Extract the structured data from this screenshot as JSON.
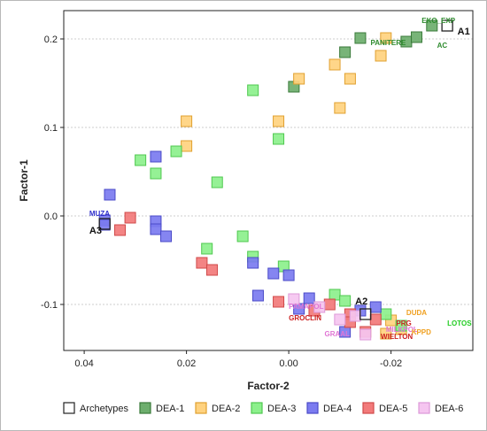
{
  "chart_data": {
    "type": "scatter",
    "xlabel": "Factor-2",
    "ylabel": "Factor-1",
    "xlim": [
      0.044,
      -0.036
    ],
    "ylim": [
      -0.152,
      0.232
    ],
    "x_reversed": true,
    "xticks": [
      0.04,
      0.02,
      0.0,
      -0.02
    ],
    "xtick_labels": [
      "0.04",
      "0.02",
      "0.00",
      "-0.02"
    ],
    "yticks": [
      0.2,
      0.1,
      0.0,
      -0.1
    ],
    "ytick_labels": [
      "0.2",
      "0.1",
      "0.0",
      "-0.1"
    ],
    "grid": "horizontal dotted",
    "legend_position": "bottom",
    "series": [
      {
        "name": "Archetypes",
        "color": "#ffffff",
        "stroke": "#222222",
        "points": [
          [
            0.036,
            -0.009
          ],
          [
            -0.031,
            0.215
          ],
          [
            -0.015,
            -0.111
          ]
        ]
      },
      {
        "name": "DEA-1",
        "color": "#6dae6d",
        "stroke": "#3a7a3a",
        "points": [
          [
            -0.028,
            0.215
          ],
          [
            -0.023,
            0.197
          ],
          [
            -0.011,
            0.185
          ],
          [
            -0.001,
            0.146
          ],
          [
            -0.014,
            0.201
          ],
          [
            -0.025,
            0.202
          ]
        ]
      },
      {
        "name": "DEA-2",
        "color": "#ffd27f",
        "stroke": "#e0a030",
        "points": [
          [
            -0.019,
            0.201
          ],
          [
            -0.018,
            0.181
          ],
          [
            -0.002,
            0.155
          ],
          [
            -0.009,
            0.171
          ],
          [
            -0.012,
            0.155
          ],
          [
            0.02,
            0.107
          ],
          [
            0.02,
            0.079
          ],
          [
            0.002,
            0.107
          ],
          [
            -0.01,
            0.122
          ],
          [
            -0.02,
            -0.118
          ],
          [
            -0.022,
            -0.128
          ],
          [
            -0.019,
            -0.133
          ]
        ]
      },
      {
        "name": "DEA-3",
        "color": "#8cf08c",
        "stroke": "#4fc84f",
        "points": [
          [
            0.007,
            0.142
          ],
          [
            0.002,
            0.087
          ],
          [
            0.029,
            0.063
          ],
          [
            0.022,
            0.073
          ],
          [
            0.026,
            0.048
          ],
          [
            0.014,
            0.038
          ],
          [
            0.016,
            -0.037
          ],
          [
            0.009,
            -0.023
          ],
          [
            0.007,
            -0.046
          ],
          [
            0.001,
            -0.057
          ],
          [
            -0.009,
            -0.089
          ],
          [
            -0.011,
            -0.096
          ],
          [
            -0.019,
            -0.111
          ],
          [
            -0.022,
            -0.124
          ]
        ]
      },
      {
        "name": "DEA-4",
        "color": "#7b7bf0",
        "stroke": "#4a4ac8",
        "points": [
          [
            0.035,
            0.024
          ],
          [
            0.036,
            -0.005
          ],
          [
            0.036,
            -0.01
          ],
          [
            0.026,
            0.067
          ],
          [
            0.026,
            -0.006
          ],
          [
            0.026,
            -0.015
          ],
          [
            0.024,
            -0.023
          ],
          [
            0.007,
            -0.053
          ],
          [
            0.006,
            -0.09
          ],
          [
            0.003,
            -0.065
          ],
          [
            0.0,
            -0.067
          ],
          [
            -0.004,
            -0.093
          ],
          [
            -0.011,
            -0.131
          ],
          [
            -0.014,
            -0.107
          ],
          [
            -0.017,
            -0.103
          ],
          [
            -0.002,
            -0.105
          ]
        ]
      },
      {
        "name": "DEA-5",
        "color": "#f27a7a",
        "stroke": "#d04a4a",
        "points": [
          [
            0.031,
            -0.002
          ],
          [
            0.033,
            -0.016
          ],
          [
            0.017,
            -0.053
          ],
          [
            0.015,
            -0.061
          ],
          [
            0.002,
            -0.097
          ],
          [
            -0.005,
            -0.107
          ],
          [
            -0.008,
            -0.1
          ],
          [
            -0.012,
            -0.111
          ],
          [
            -0.012,
            -0.12
          ],
          [
            -0.015,
            -0.131
          ],
          [
            -0.017,
            -0.117
          ]
        ]
      },
      {
        "name": "DEA-6",
        "color": "#f5c5f0",
        "stroke": "#dd99d8",
        "points": [
          [
            -0.001,
            -0.094
          ],
          [
            -0.006,
            -0.103
          ],
          [
            -0.01,
            -0.117
          ],
          [
            -0.013,
            -0.113
          ],
          [
            -0.015,
            -0.134
          ]
        ]
      }
    ],
    "annotations": [
      {
        "text": "EKO_EXP",
        "x": -0.026,
        "y": 0.218,
        "color": "#2e8b2e",
        "size": "small"
      },
      {
        "text": "PANITERE",
        "x": -0.016,
        "y": 0.193,
        "color": "#2e8b2e",
        "size": "small"
      },
      {
        "text": "AC",
        "x": -0.029,
        "y": 0.19,
        "color": "#2e8b2e",
        "size": "small"
      },
      {
        "text": "A1",
        "x": -0.033,
        "y": 0.205,
        "color": "#111111",
        "size": "big"
      },
      {
        "text": "MUZA",
        "x": 0.039,
        "y": 0.0,
        "color": "#3030cc",
        "size": "small"
      },
      {
        "text": "A3",
        "x": 0.039,
        "y": -0.02,
        "color": "#111111",
        "size": "big"
      },
      {
        "text": "A2",
        "x": -0.013,
        "y": -0.1,
        "color": "#111111",
        "size": "big"
      },
      {
        "text": "PAMAPOL",
        "x": -0.0,
        "y": -0.105,
        "color": "#e075d4",
        "size": "small"
      },
      {
        "text": "GROCLIN",
        "x": 0.0,
        "y": -0.118,
        "color": "#cc2020",
        "size": "small"
      },
      {
        "text": "DUDA",
        "x": -0.023,
        "y": -0.112,
        "color": "#f0a020",
        "size": "small"
      },
      {
        "text": "PRG",
        "x": -0.021,
        "y": -0.124,
        "color": "#cc2020",
        "size": "small"
      },
      {
        "text": "LOTOS",
        "x": -0.031,
        "y": -0.124,
        "color": "#22cc22",
        "size": "small"
      },
      {
        "text": "GRAAL",
        "x": -0.007,
        "y": -0.136,
        "color": "#e075d4",
        "size": "small"
      },
      {
        "text": "MILKPOL",
        "x": -0.019,
        "y": -0.131,
        "color": "#e075d4",
        "size": "small"
      },
      {
        "text": "KPPD",
        "x": -0.024,
        "y": -0.134,
        "color": "#f0a020",
        "size": "small"
      },
      {
        "text": "WIELTON",
        "x": -0.018,
        "y": -0.139,
        "color": "#cc2020",
        "size": "small"
      }
    ]
  }
}
